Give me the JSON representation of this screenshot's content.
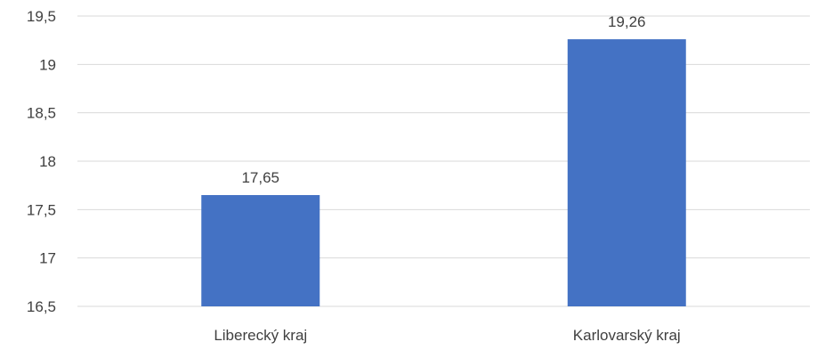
{
  "chart_data": {
    "type": "bar",
    "title": "",
    "xlabel": "",
    "ylabel": "",
    "categories": [
      "Liberecký kraj",
      "Karlovarský kraj"
    ],
    "values": [
      17.65,
      19.26
    ],
    "value_labels": [
      "17,65",
      "19,26"
    ],
    "ylim": [
      16.5,
      19.5
    ],
    "y_ticks": [
      16.5,
      17,
      17.5,
      18,
      18.5,
      19,
      19.5
    ],
    "y_tick_labels": [
      "16,5",
      "17",
      "17,5",
      "18",
      "18,5",
      "19",
      "19,5"
    ],
    "grid": true,
    "legend": "none",
    "bar_color": "#4472C4",
    "grid_color": "#D9D9D9"
  }
}
